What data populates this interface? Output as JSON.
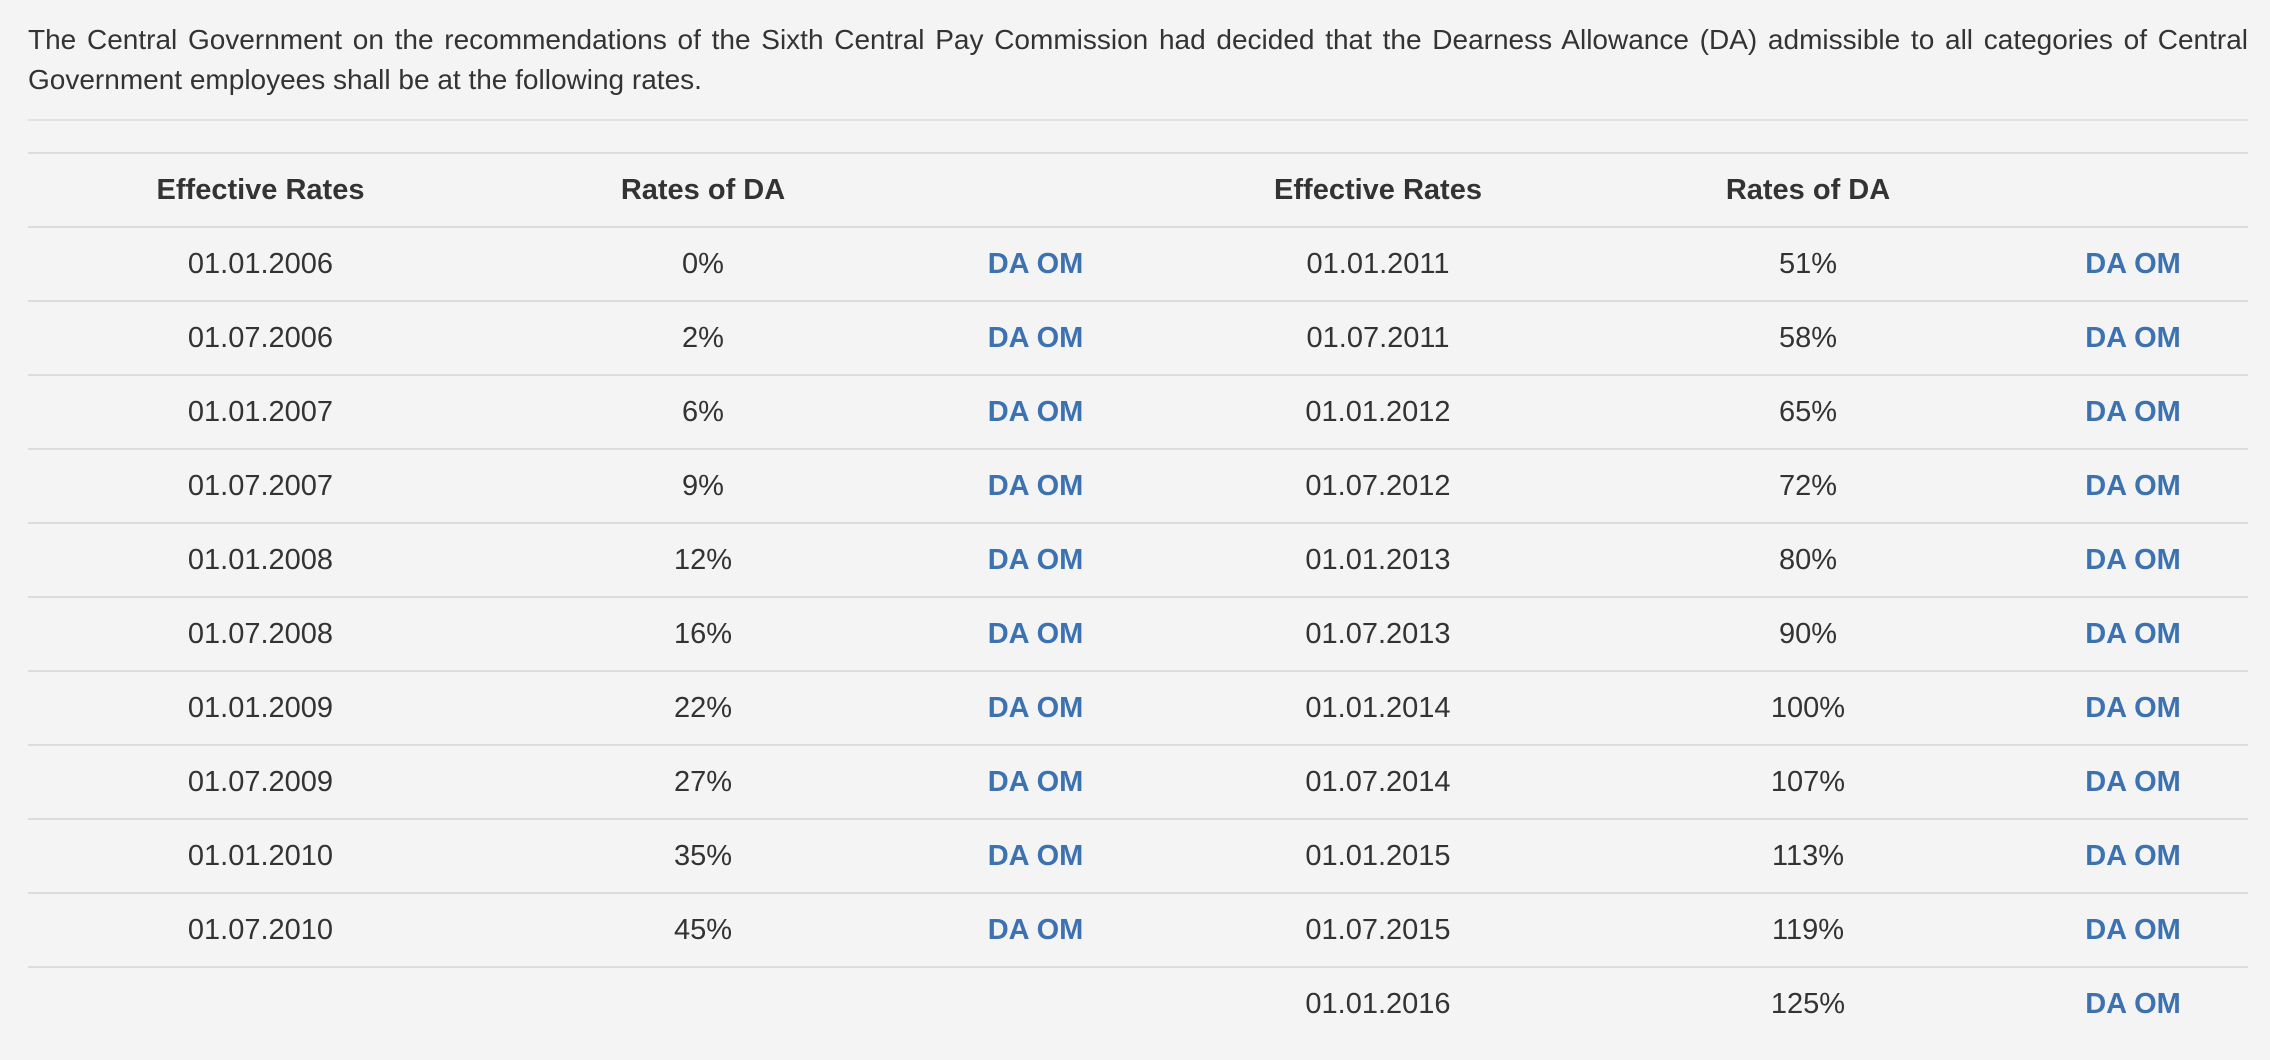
{
  "intro_text": "The Central Government on the recommendations of the Sixth Central Pay Commission had decided that the Dearness Allowance (DA) admissible to all categories of Central Government employees shall be at the following rates.",
  "table": {
    "headers": [
      "Effective Rates",
      "Rates of DA",
      "",
      "Effective Rates",
      "Rates of DA",
      ""
    ],
    "rows": [
      {
        "left_date": "01.01.2006",
        "left_rate": "0%",
        "left_link": "DA OM",
        "right_date": "01.01.2011",
        "right_rate": "51%",
        "right_link": "DA OM"
      },
      {
        "left_date": "01.07.2006",
        "left_rate": "2%",
        "left_link": "DA OM",
        "right_date": "01.07.2011",
        "right_rate": "58%",
        "right_link": "DA OM"
      },
      {
        "left_date": "01.01.2007",
        "left_rate": "6%",
        "left_link": "DA OM",
        "right_date": "01.01.2012",
        "right_rate": "65%",
        "right_link": "DA OM"
      },
      {
        "left_date": "01.07.2007",
        "left_rate": "9%",
        "left_link": "DA OM",
        "right_date": "01.07.2012",
        "right_rate": "72%",
        "right_link": "DA OM"
      },
      {
        "left_date": "01.01.2008",
        "left_rate": "12%",
        "left_link": "DA OM",
        "right_date": "01.01.2013",
        "right_rate": "80%",
        "right_link": "DA OM"
      },
      {
        "left_date": "01.07.2008",
        "left_rate": "16%",
        "left_link": "DA OM",
        "right_date": "01.07.2013",
        "right_rate": "90%",
        "right_link": "DA OM"
      },
      {
        "left_date": "01.01.2009",
        "left_rate": "22%",
        "left_link": "DA OM",
        "right_date": "01.01.2014",
        "right_rate": "100%",
        "right_link": "DA OM"
      },
      {
        "left_date": "01.07.2009",
        "left_rate": "27%",
        "left_link": "DA OM",
        "right_date": "01.07.2014",
        "right_rate": "107%",
        "right_link": "DA OM"
      },
      {
        "left_date": "01.01.2010",
        "left_rate": "35%",
        "left_link": "DA OM",
        "right_date": "01.01.2015",
        "right_rate": "113%",
        "right_link": "DA OM"
      },
      {
        "left_date": "01.07.2010",
        "left_rate": "45%",
        "left_link": "DA OM",
        "right_date": "01.07.2015",
        "right_rate": "119%",
        "right_link": "DA OM"
      },
      {
        "left_date": "",
        "left_rate": "",
        "left_link": "",
        "right_date": "01.01.2016",
        "right_rate": "125%",
        "right_link": "DA OM"
      }
    ]
  },
  "colors": {
    "background": "#f4f4f4",
    "text": "#333333",
    "link": "#3d72b1",
    "rule": "#dcdcdc"
  }
}
